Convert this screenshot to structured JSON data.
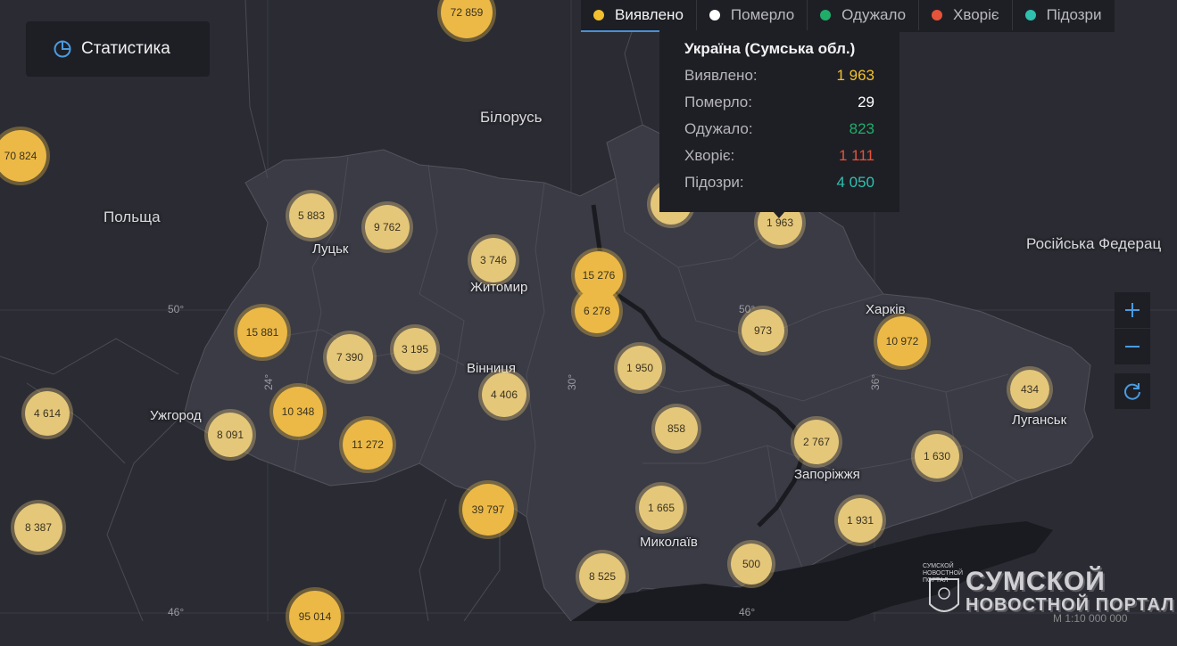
{
  "stats_button": {
    "label": "Статистика",
    "icon": "pie-chart-icon"
  },
  "tabs": [
    {
      "label": "Виявлено",
      "color": "#f2c02f",
      "active": true
    },
    {
      "label": "Померло",
      "color": "#ffffff",
      "active": false
    },
    {
      "label": "Одужало",
      "color": "#1fae6a",
      "active": false
    },
    {
      "label": "Хворіє",
      "color": "#e5533a",
      "active": false
    },
    {
      "label": "Підозри",
      "color": "#2fc0b0",
      "active": false
    }
  ],
  "tooltip": {
    "title": "Україна (Сумська обл.)",
    "rows": [
      {
        "label": "Виявлено:",
        "value": "1 963",
        "color": "#f2c02f"
      },
      {
        "label": "Померло:",
        "value": "29",
        "color": "#ffffff"
      },
      {
        "label": "Одужало:",
        "value": "823",
        "color": "#1fae6a"
      },
      {
        "label": "Хворіє:",
        "value": "1 111",
        "color": "#e5533a"
      },
      {
        "label": "Підозри:",
        "value": "4 050",
        "color": "#2fc0b0"
      }
    ]
  },
  "countries": [
    "Польща",
    "Білорусь",
    "Російська Федерац"
  ],
  "cities": [
    "Луцьк",
    "Житомир",
    "Вінниця",
    "Ужгород",
    "Харків",
    "Луганськ",
    "Запоріжжя",
    "Миколаїв"
  ],
  "grid_labels": [
    "50°",
    "50°",
    "46°",
    "46°",
    "24°",
    "30°",
    "36°"
  ],
  "clusters": [
    "72 859",
    "70 824",
    "5 883",
    "9 762",
    "3 746",
    "15 276",
    "6 278",
    "15 881",
    "7 390",
    "3 195",
    "4 614",
    "10 348",
    "8 091",
    "11 272",
    "4 406",
    "1 950",
    "973",
    "10 972",
    "1 963",
    "434",
    "858",
    "2 767",
    "1 630",
    "8 387",
    "39 797",
    "1 665",
    "1 931",
    "8 525",
    "500",
    "95 014"
  ],
  "zoom": {
    "in_icon": "plus-icon",
    "out_icon": "minus-icon",
    "reset_icon": "refresh-icon"
  },
  "watermark": {
    "line1": "СУМСКОЙ",
    "line2": "НОВОСТНОЙ ПОРТАЛ",
    "small": "СУМСКОЙ НОВОСТНОЙ ПОРТАЛ"
  },
  "scale_text": "М 1:10 000 000"
}
